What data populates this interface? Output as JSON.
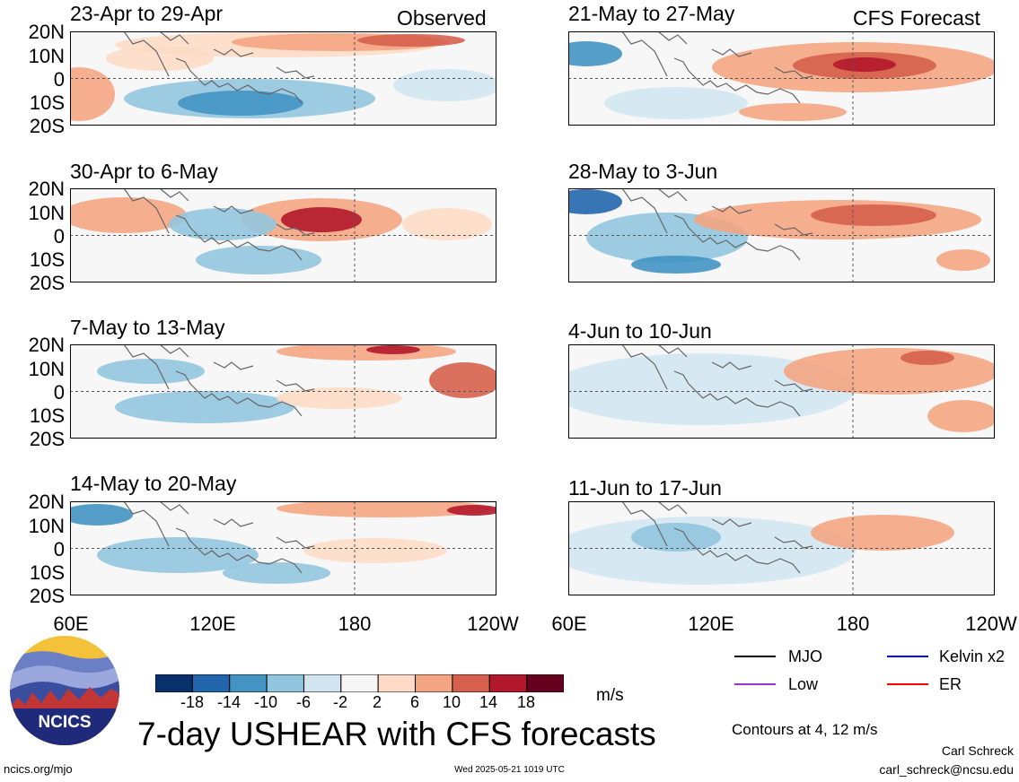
{
  "title": "7-day USHEAR with CFS forecasts",
  "observed_label": "Observed",
  "forecast_label": "CFS Forecast",
  "panels_left": [
    {
      "title": "23-Apr to 29-Apr"
    },
    {
      "title": "30-Apr to 6-May"
    },
    {
      "title": "7-May to 13-May"
    },
    {
      "title": "14-May to 20-May"
    }
  ],
  "panels_right": [
    {
      "title": "21-May to 27-May"
    },
    {
      "title": "28-May to 3-Jun"
    },
    {
      "title": "4-Jun to 10-Jun"
    },
    {
      "title": "11-Jun to 17-Jun"
    }
  ],
  "lat_labels": [
    "20N",
    "10N",
    "0",
    "10S",
    "20S"
  ],
  "lon_labels_left": [
    "60E",
    "120E",
    "180",
    "120W"
  ],
  "lon_labels_right": [
    "60E",
    "120E",
    "180",
    "120W"
  ],
  "colorbar": {
    "labels": [
      "-18",
      "-14",
      "-10",
      "-6",
      "-2",
      "2",
      "6",
      "10",
      "14",
      "18"
    ],
    "unit": "m/s",
    "colors": [
      "#08306b",
      "#2166ac",
      "#4393c3",
      "#92c5de",
      "#d1e5f0",
      "#f7f7f7",
      "#fddbc7",
      "#f4a582",
      "#d6604d",
      "#b2182b",
      "#67001f"
    ]
  },
  "legend": {
    "mjo": {
      "label": "MJO",
      "color": "#000000"
    },
    "kelvin": {
      "label": "Kelvin x2",
      "color": "#0000ff"
    },
    "low": {
      "label": "Low",
      "color": "#9932cc"
    },
    "er": {
      "label": "ER",
      "color": "#ff0000"
    }
  },
  "contours_note": "Contours at 4, 12 m/s",
  "logo_text": "NCICS",
  "footer": {
    "url": "ncics.org/mjo",
    "timestamp": "Wed 2025-05-21 1019 UTC",
    "author": "Carl Schreck",
    "email": "carl_schreck@ncsu.edu"
  }
}
